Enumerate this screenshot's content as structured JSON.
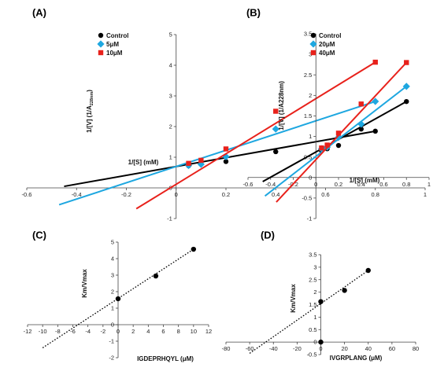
{
  "chart_data": [
    {
      "panel": "(A)",
      "type": "line",
      "xlabel": "1/[S] (mM)",
      "ylabel_main": "1/[V] (1/A",
      "ylabel_sub": "228nm",
      "ylabel_end": ")",
      "xlim": [
        -0.6,
        1.0
      ],
      "ylim": [
        -1,
        5
      ],
      "xticks": [
        -0.6,
        -0.4,
        -0.2,
        0,
        0.2,
        0.4,
        0.6,
        0.8,
        1
      ],
      "yticks": [
        -1,
        0,
        1,
        2,
        3,
        4,
        5
      ],
      "legend_position": "top-left",
      "series": [
        {
          "name": "Control",
          "color": "#000000",
          "marker": "circle",
          "x": [
            0.05,
            0.1,
            0.2,
            0.4,
            0.8
          ],
          "y": [
            0.72,
            0.78,
            0.86,
            1.18,
            1.85
          ],
          "fit": {
            "x": [
              -0.45,
              0.8
            ],
            "y": [
              0.05,
              1.85
            ]
          }
        },
        {
          "name": "5μM",
          "color": "#1ea7e0",
          "marker": "diamond",
          "x": [
            0.05,
            0.1,
            0.2,
            0.4,
            0.8
          ],
          "y": [
            0.73,
            0.77,
            1.02,
            1.92,
            2.82
          ],
          "fit": {
            "x": [
              -0.47,
              0.8
            ],
            "y": [
              -0.55,
              2.82
            ]
          }
        },
        {
          "name": "10μM",
          "color": "#e8211b",
          "marker": "square",
          "x": [
            0.05,
            0.1,
            0.2,
            0.4,
            0.8
          ],
          "y": [
            0.8,
            0.9,
            1.27,
            2.5,
            4.1
          ],
          "fit": {
            "x": [
              -0.16,
              0.8
            ],
            "y": [
              -0.68,
              4.1
            ]
          }
        }
      ]
    },
    {
      "panel": "(B)",
      "type": "line",
      "xlabel": "1/[S] (mM)",
      "ylabel_main": "1/[V] (1/A228nm)",
      "ylabel_sub": "",
      "ylabel_end": "",
      "xlim": [
        -0.6,
        1.0
      ],
      "ylim": [
        -1,
        3.5
      ],
      "xticks": [
        -0.6,
        -0.4,
        -0.2,
        0,
        0.2,
        0.4,
        0.6,
        0.8,
        1
      ],
      "yticks": [
        -1,
        -0.5,
        0,
        0.5,
        1,
        1.5,
        2,
        2.5,
        3,
        3.5
      ],
      "legend_position": "top-left",
      "series": [
        {
          "name": "Control",
          "color": "#000000",
          "marker": "circle",
          "x": [
            0.05,
            0.1,
            0.2,
            0.4,
            0.8
          ],
          "y": [
            0.65,
            0.7,
            0.78,
            1.18,
            1.85
          ],
          "fit": {
            "x": [
              -0.47,
              0.8
            ],
            "y": [
              -0.1,
              1.85
            ]
          }
        },
        {
          "name": "20μM",
          "color": "#1ea7e0",
          "marker": "diamond",
          "x": [
            0.05,
            0.1,
            0.2,
            0.4,
            0.8
          ],
          "y": [
            0.7,
            0.74,
            0.98,
            1.3,
            2.22
          ],
          "fit": {
            "x": [
              -0.45,
              0.8
            ],
            "y": [
              -0.45,
              2.22
            ]
          }
        },
        {
          "name": "40μM",
          "color": "#e8211b",
          "marker": "square",
          "x": [
            0.05,
            0.1,
            0.2,
            0.4,
            0.8
          ],
          "y": [
            0.72,
            0.79,
            1.08,
            1.79,
            2.8
          ],
          "fit": {
            "x": [
              -0.35,
              0.8
            ],
            "y": [
              -0.6,
              2.8
            ]
          }
        }
      ]
    },
    {
      "panel": "(C)",
      "type": "scatter",
      "xlabel": "IGDEPRHQYL (μM)",
      "ylabel_main": "Km/Vmax",
      "ylabel_sub": "",
      "ylabel_end": "",
      "xlim": [
        -12,
        12
      ],
      "ylim": [
        -2,
        5
      ],
      "xticks": [
        -12,
        -10,
        -8,
        -6,
        -4,
        -2,
        0,
        2,
        4,
        6,
        8,
        10,
        12
      ],
      "yticks": [
        -2,
        -1,
        0,
        1,
        2,
        3,
        4,
        5
      ],
      "series": [
        {
          "name": "",
          "color": "#000000",
          "marker": "circle",
          "x": [
            0,
            5,
            10
          ],
          "y": [
            1.57,
            2.95,
            4.57
          ],
          "fit": {
            "x": [
              -10,
              10
            ],
            "y": [
              -1.4,
              4.57
            ]
          }
        }
      ]
    },
    {
      "panel": "(D)",
      "type": "scatter",
      "xlabel": "IVGRPLANG (μM)",
      "ylabel_main": "Km/Vmax",
      "ylabel_sub": "",
      "ylabel_end": "",
      "xlim": [
        -80,
        80
      ],
      "ylim": [
        -0.5,
        3.5
      ],
      "xticks": [
        -80,
        -60,
        -40,
        -20,
        0,
        20,
        40,
        60,
        80
      ],
      "yticks": [
        -0.5,
        0,
        0.5,
        1,
        1.5,
        2,
        2.5,
        3,
        3.5
      ],
      "series": [
        {
          "name": "",
          "color": "#000000",
          "marker": "circle",
          "x": [
            0,
            0,
            20,
            40
          ],
          "y": [
            0,
            1.62,
            2.07,
            2.87
          ],
          "fit": {
            "x": [
              -60,
              40
            ],
            "y": [
              -0.45,
              2.87
            ]
          }
        }
      ]
    }
  ]
}
